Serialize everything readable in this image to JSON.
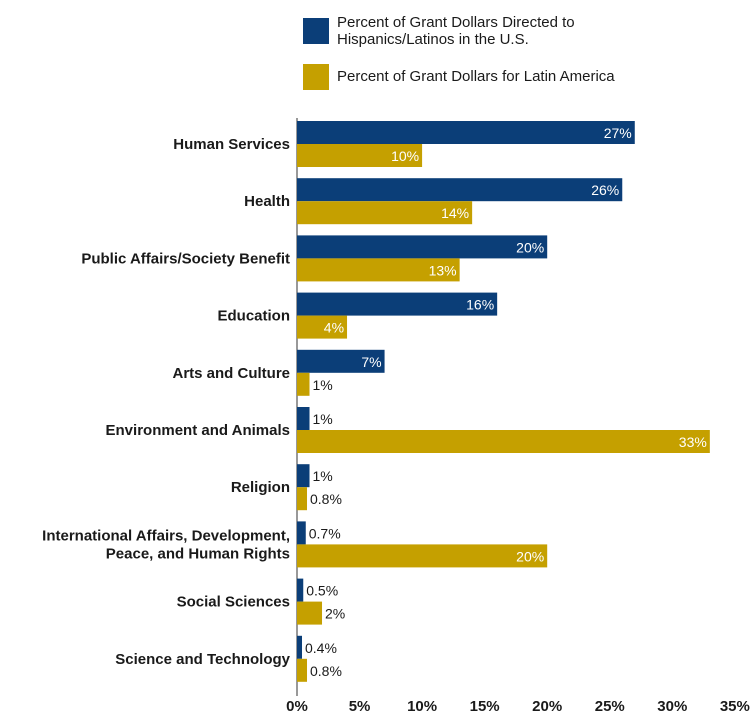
{
  "chart_data": {
    "type": "bar",
    "orientation": "horizontal",
    "categories": [
      "Human Services",
      "Health",
      "Public Affairs/Society Benefit",
      "Education",
      "Arts and Culture",
      "Environment and Animals",
      "Religion",
      "International Affairs, Development,\nPeace, and Human Rights",
      "Social Sciences",
      "Science and Technology"
    ],
    "series": [
      {
        "name": "Percent of Grant Dollars Directed to\nHispanics/Latinos in the U.S.",
        "color": "#0b3e78",
        "values": [
          27,
          26,
          20,
          16,
          7,
          1,
          1,
          0.7,
          0.5,
          0.4
        ],
        "labels": [
          "27%",
          "26%",
          "20%",
          "16%",
          "7%",
          "1%",
          "1%",
          "0.7%",
          "0.5%",
          "0.4%"
        ]
      },
      {
        "name": "Percent of Grant Dollars for Latin America",
        "color": "#c5a000",
        "values": [
          10,
          14,
          13,
          4,
          1,
          33,
          0.8,
          20,
          2,
          0.8
        ],
        "labels": [
          "10%",
          "14%",
          "13%",
          "4%",
          "1%",
          "33%",
          "0.8%",
          "20%",
          "2%",
          "0.8%"
        ]
      }
    ],
    "xlim": [
      0,
      35
    ],
    "xticks": [
      0,
      5,
      10,
      15,
      20,
      25,
      30,
      35
    ],
    "xtick_labels": [
      "0%",
      "5%",
      "10%",
      "15%",
      "20%",
      "25%",
      "30%",
      "35%"
    ],
    "grid": false,
    "legend_position": "top"
  }
}
